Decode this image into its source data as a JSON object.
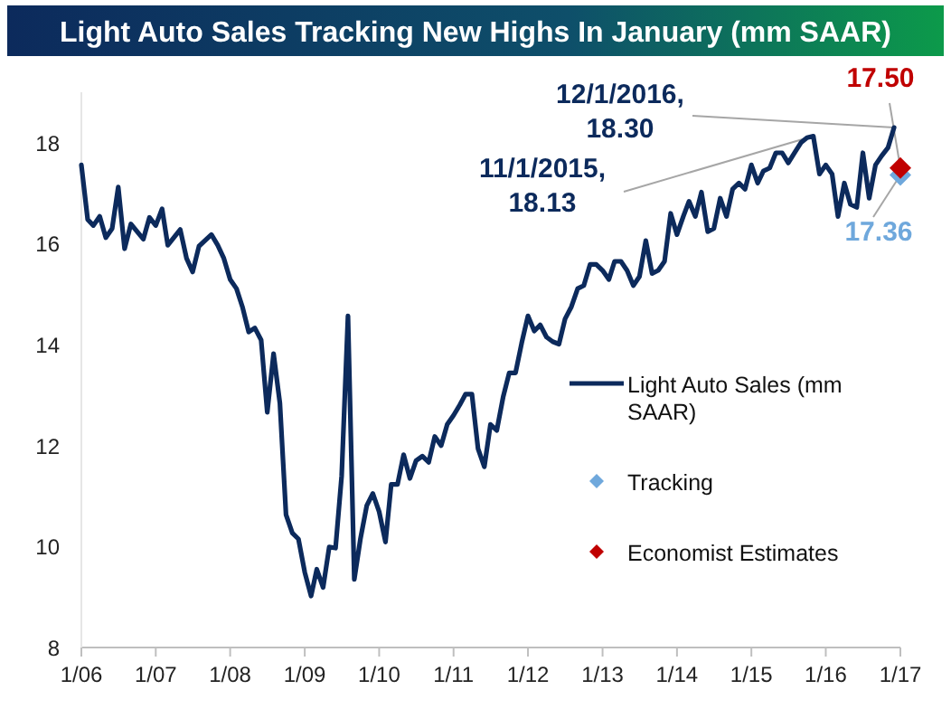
{
  "chart_data": {
    "type": "line",
    "title": "Light Auto Sales Tracking New Highs In January (mm SAAR)",
    "x": [
      "2006-01",
      "2006-02",
      "2006-03",
      "2006-04",
      "2006-05",
      "2006-06",
      "2006-07",
      "2006-08",
      "2006-09",
      "2006-11",
      "2006-12",
      "2007-01",
      "2007-02",
      "2007-03",
      "2007-05",
      "2007-06",
      "2007-07",
      "2007-08",
      "2007-10",
      "2007-11",
      "2007-12",
      "2008-01",
      "2008-02",
      "2008-03",
      "2008-04",
      "2008-05",
      "2008-06",
      "2008-07",
      "2008-08",
      "2008-09",
      "2008-10",
      "2008-11",
      "2008-12",
      "2009-01",
      "2009-02",
      "2009-03",
      "2009-04",
      "2009-05",
      "2009-06",
      "2009-07",
      "2009-08",
      "2009-09",
      "2009-10",
      "2009-11",
      "2009-12",
      "2010-01",
      "2010-02",
      "2010-03",
      "2010-04",
      "2010-05",
      "2010-06",
      "2010-07",
      "2010-08",
      "2010-09",
      "2010-10",
      "2010-11",
      "2010-12",
      "2011-01",
      "2011-02",
      "2011-03",
      "2011-04",
      "2011-05",
      "2011-06",
      "2011-07",
      "2011-08",
      "2011-09",
      "2011-10",
      "2011-11",
      "2011-12",
      "2012-01",
      "2012-02",
      "2012-03",
      "2012-04",
      "2012-05",
      "2012-06",
      "2012-07",
      "2012-08",
      "2012-09",
      "2012-10",
      "2012-11",
      "2012-12",
      "2013-01",
      "2013-02",
      "2013-03",
      "2013-04",
      "2013-05",
      "2013-06",
      "2013-07",
      "2013-08",
      "2013-09",
      "2013-10",
      "2013-11",
      "2013-12",
      "2014-01",
      "2014-02",
      "2014-03",
      "2014-04",
      "2014-05",
      "2014-06",
      "2014-07",
      "2014-08",
      "2014-09",
      "2014-10",
      "2014-11",
      "2014-12",
      "2015-01",
      "2015-02",
      "2015-03",
      "2015-04",
      "2015-05",
      "2015-06",
      "2015-07",
      "2015-08",
      "2015-09",
      "2015-10",
      "2015-11",
      "2015-12",
      "2016-01",
      "2016-02",
      "2016-03",
      "2016-04",
      "2016-05",
      "2016-06",
      "2016-07",
      "2016-08",
      "2016-09",
      "2016-10",
      "2016-11",
      "2016-12"
    ],
    "series": [
      {
        "name": "Light Auto Sales (mm SAAR)",
        "color": "#0c2a5c",
        "values": [
          17.56,
          16.48,
          16.36,
          16.54,
          16.12,
          16.3,
          17.12,
          15.9,
          16.39,
          16.09,
          16.52,
          16.36,
          16.69,
          15.97,
          16.28,
          15.71,
          15.44,
          15.95,
          16.18,
          15.97,
          15.71,
          15.29,
          15.11,
          14.75,
          14.25,
          14.33,
          14.09,
          12.66,
          13.82,
          12.84,
          10.63,
          10.27,
          10.15,
          9.49,
          9.02,
          9.55,
          9.19,
          9.99,
          9.97,
          11.4,
          14.57,
          9.35,
          10.15,
          10.81,
          11.05,
          10.69,
          10.09,
          11.23,
          11.23,
          11.82,
          11.35,
          11.7,
          11.79,
          11.67,
          12.18,
          12.0,
          12.42,
          12.6,
          12.81,
          13.02,
          13.02,
          11.94,
          11.58,
          12.42,
          12.3,
          12.96,
          13.44,
          13.44,
          14.03,
          14.57,
          14.27,
          14.39,
          14.15,
          14.06,
          14.01,
          14.51,
          14.75,
          15.11,
          15.17,
          15.59,
          15.59,
          15.47,
          15.29,
          15.65,
          15.65,
          15.47,
          15.17,
          15.35,
          16.06,
          15.41,
          15.47,
          15.65,
          16.6,
          16.18,
          16.54,
          16.84,
          16.54,
          17.02,
          16.24,
          16.3,
          16.9,
          16.54,
          17.08,
          17.2,
          17.08,
          17.56,
          17.2,
          17.44,
          17.5,
          17.8,
          17.8,
          17.6,
          17.8,
          18.0,
          18.1,
          18.13,
          17.38,
          17.56,
          17.38,
          16.54,
          17.2,
          16.78,
          16.72,
          17.8,
          16.9,
          17.56,
          17.74,
          17.9,
          18.3
        ]
      },
      {
        "name": "Tracking",
        "type": "scatter",
        "marker": "diamond",
        "color": "#6fa8dc",
        "x": [
          "2017-01"
        ],
        "values": [
          17.36
        ]
      },
      {
        "name": "Economist Estimates",
        "type": "scatter",
        "marker": "diamond",
        "color": "#c00000",
        "x": [
          "2017-01"
        ],
        "values": [
          17.5
        ]
      }
    ],
    "annotations": [
      {
        "text": "12/1/2016,\n18.30",
        "x": "2016-12",
        "y": 18.3
      },
      {
        "text": "11/1/2015,\n18.13",
        "x": "2015-11",
        "y": 18.13
      },
      {
        "text": "17.50",
        "x": "2017-01",
        "y": 17.5
      },
      {
        "text": "17.36",
        "x": "2017-01",
        "y": 17.36
      }
    ],
    "xlim": [
      "2006-01",
      "2017-01"
    ],
    "xticks": [
      {
        "value": "2006-01",
        "label": "1/06"
      },
      {
        "value": "2007-01",
        "label": "1/07"
      },
      {
        "value": "2008-01",
        "label": "1/08"
      },
      {
        "value": "2009-01",
        "label": "1/09"
      },
      {
        "value": "2010-01",
        "label": "1/10"
      },
      {
        "value": "2011-01",
        "label": "1/11"
      },
      {
        "value": "2012-01",
        "label": "1/12"
      },
      {
        "value": "2013-01",
        "label": "1/13"
      },
      {
        "value": "2014-01",
        "label": "1/14"
      },
      {
        "value": "2015-01",
        "label": "1/15"
      },
      {
        "value": "2016-01",
        "label": "1/16"
      },
      {
        "value": "2017-01",
        "label": "1/17"
      }
    ],
    "ylim": [
      8,
      19
    ],
    "yticks": [
      8,
      10,
      12,
      14,
      16,
      18
    ],
    "grid": false,
    "legend": "right",
    "line_style": "solid"
  }
}
